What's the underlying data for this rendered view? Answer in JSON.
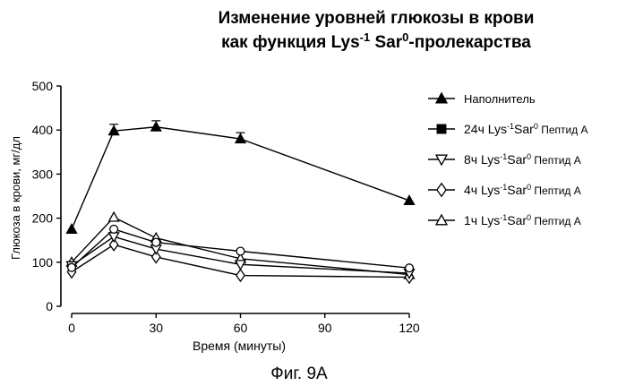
{
  "chart_data": {
    "type": "line",
    "title_line1": "Изменение уровней глюкозы в крови",
    "title_line2_prefix": "как функция Lys",
    "title_line2_sup1": "-1",
    "title_line2_mid": " Sar",
    "title_line2_sup2": "0",
    "title_line2_suffix": "-пролекарства",
    "xlabel": "Время (минуты)",
    "ylabel": "Глюкоза в крови, мг/дл",
    "x_ticks": [
      0,
      30,
      60,
      90,
      120
    ],
    "y_ticks": [
      0,
      100,
      200,
      300,
      400,
      500
    ],
    "xlim": [
      0,
      120
    ],
    "ylim": [
      0,
      500
    ],
    "caption": "Фиг. 9А",
    "series": [
      {
        "name": "Наполнитель",
        "marker": "triangle-up-filled",
        "x": [
          0,
          15,
          30,
          60,
          120
        ],
        "y": [
          175,
          398,
          407,
          380,
          240
        ],
        "err": [
          0,
          15,
          14,
          14,
          0
        ]
      },
      {
        "name": "24ч Lys-1Sar0 Пептид А",
        "marker": "square-filled",
        "x": [
          0,
          15,
          30,
          60,
          120
        ],
        "y": [
          88,
          175,
          145,
          125,
          87
        ],
        "err": [
          0,
          0,
          0,
          0,
          0
        ]
      },
      {
        "name": "8ч Lys-1Sar0 Пептид А",
        "marker": "triangle-down-open",
        "x": [
          0,
          15,
          30,
          60,
          120
        ],
        "y": [
          92,
          158,
          130,
          95,
          75
        ],
        "err": [
          0,
          0,
          0,
          0,
          0
        ]
      },
      {
        "name": "4ч Lys-1Sar0 Пептид А",
        "marker": "diamond-open",
        "x": [
          0,
          15,
          30,
          60,
          120
        ],
        "y": [
          78,
          140,
          112,
          70,
          66
        ],
        "err": [
          0,
          0,
          0,
          0,
          0
        ]
      },
      {
        "name": "1ч Lys-1Sar0 Пептид А",
        "marker": "triangle-up-open",
        "x": [
          0,
          15,
          30,
          60,
          120
        ],
        "y": [
          100,
          202,
          155,
          108,
          72
        ],
        "err": [
          0,
          0,
          0,
          0,
          0
        ]
      }
    ],
    "legend": [
      {
        "hours": "",
        "prefix": "Наполнитель",
        "sup1": "",
        "mid": "",
        "sup2": "",
        "suffix": ""
      },
      {
        "hours": "24ч",
        "prefix": "Lys",
        "sup1": "-1",
        "mid": "Sar",
        "sup2": "0",
        "suffix": " Пептид А"
      },
      {
        "hours": "8ч",
        "prefix": "Lys",
        "sup1": "-1",
        "mid": "Sar",
        "sup2": "0",
        "suffix": " Пептид А"
      },
      {
        "hours": "4ч",
        "prefix": "Lys",
        "sup1": "-1",
        "mid": "Sar",
        "sup2": "0",
        "suffix": " Пептид А"
      },
      {
        "hours": "1ч",
        "prefix": "Lys",
        "sup1": "-1",
        "mid": "Sar",
        "sup2": "0",
        "suffix": " Пептид А"
      }
    ],
    "legend_position": "right",
    "grid": false
  }
}
